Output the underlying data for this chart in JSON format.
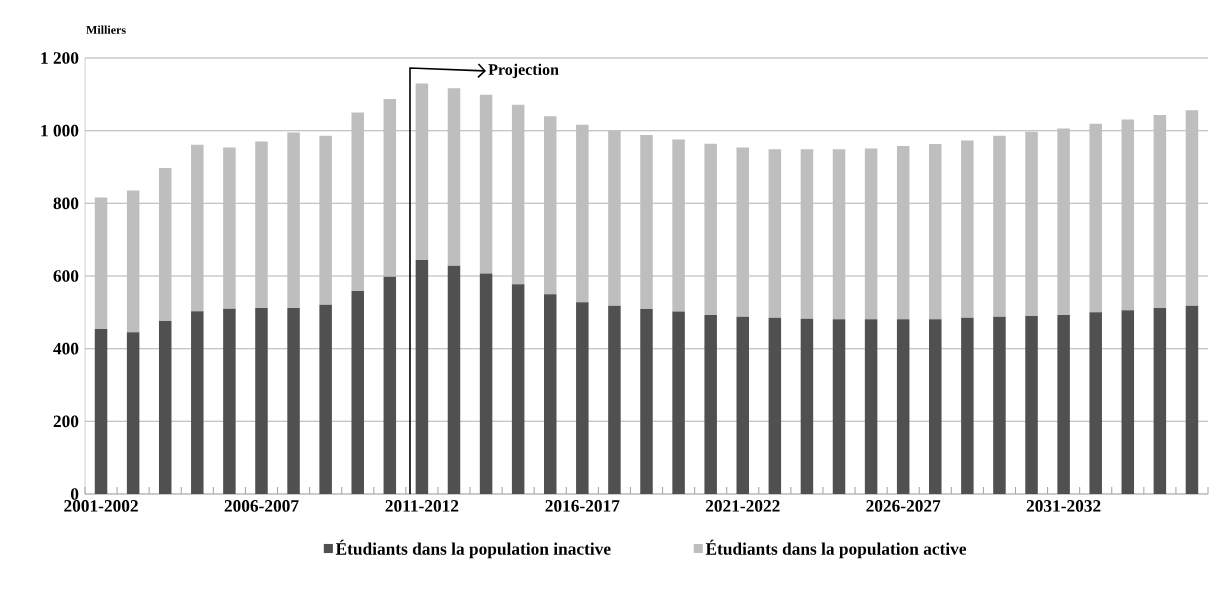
{
  "chart_data": {
    "type": "bar",
    "stacked": true,
    "ylabel": "Milliers",
    "categories": [
      "2001-2002",
      null,
      null,
      null,
      null,
      "2006-2007",
      null,
      null,
      null,
      null,
      "2011-2012",
      null,
      null,
      null,
      null,
      "2016-2017",
      null,
      null,
      null,
      null,
      "2021-2022",
      null,
      null,
      null,
      null,
      "2026-2027",
      null,
      null,
      null,
      null,
      "2031-2032",
      null,
      null,
      null,
      null
    ],
    "series": [
      {
        "name": "Étudiants dans la population inactive",
        "color": "#505050",
        "values": [
          454,
          445,
          476,
          503,
          510,
          512,
          512,
          521,
          559,
          598,
          644,
          628,
          607,
          577,
          550,
          528,
          518,
          509,
          502,
          493,
          488,
          485,
          482,
          481,
          481,
          481,
          481,
          485,
          488,
          490,
          493,
          500,
          506,
          512,
          518
        ]
      },
      {
        "name": "Étudiants dans la population active",
        "color": "#bebebe",
        "values": [
          362,
          390,
          421,
          458,
          444,
          458,
          483,
          465,
          491,
          489,
          486,
          489,
          492,
          494,
          490,
          488,
          482,
          479,
          474,
          471,
          466,
          464,
          467,
          468,
          470,
          477,
          482,
          488,
          498,
          507,
          513,
          519,
          525,
          531,
          538
        ]
      }
    ],
    "ylim": [
      0,
      1200
    ],
    "yticks": [
      0,
      200,
      400,
      600,
      800,
      {
        "value": 1000,
        "label": "1 000"
      },
      {
        "value": 1200,
        "label": "1 200"
      }
    ],
    "grid": "y",
    "legend": "bottom",
    "annotations": [
      "Projection"
    ]
  }
}
